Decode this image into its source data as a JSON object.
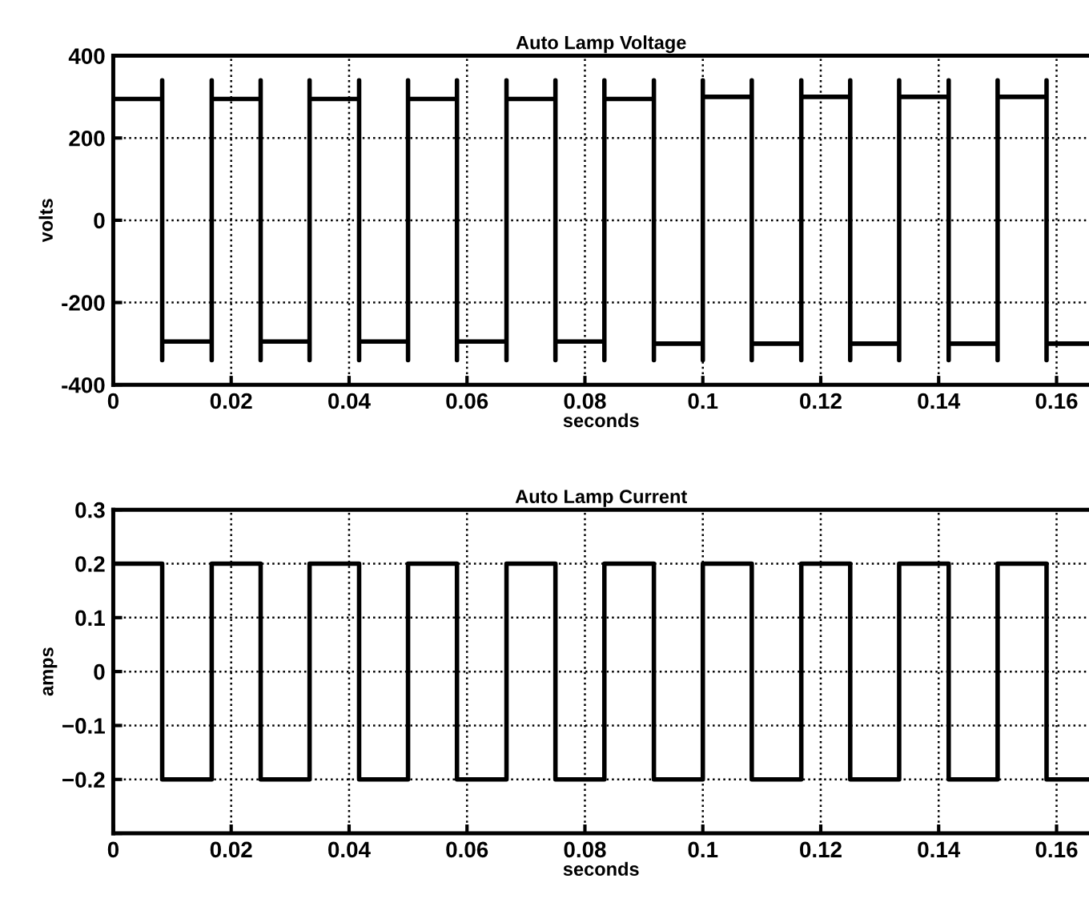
{
  "chart_data": [
    {
      "type": "line",
      "title": "Auto Lamp Voltage",
      "xlabel": "seconds",
      "ylabel": "volts",
      "xlim": [
        0,
        0.1655
      ],
      "xticks": [
        0,
        {
          "value": 0.02,
          "label": "0.02"
        },
        {
          "value": 0.04,
          "label": "0.04"
        },
        {
          "value": 0.06,
          "label": "0.06"
        },
        {
          "value": 0.08,
          "label": "0.08"
        },
        {
          "value": 0.1,
          "label": "0.1"
        },
        {
          "value": 0.12,
          "label": "0.12"
        },
        {
          "value": 0.14,
          "label": "0.14"
        },
        {
          "value": 0.16,
          "label": "0.16"
        }
      ],
      "ylim": [
        -400,
        400
      ],
      "yticks": [
        -400,
        -200,
        0,
        200,
        400
      ],
      "grid": true,
      "marker": "none",
      "line_style": "solid",
      "series": [
        {
          "color": "#000000",
          "x": [
            0,
            0.0083,
            0.0083,
            0.0083,
            0.0083,
            0.0167,
            0.0167,
            0.0167,
            0.0167,
            0.025,
            0.025,
            0.025,
            0.025,
            0.0333,
            0.0333,
            0.0333,
            0.0333,
            0.0417,
            0.0417,
            0.0417,
            0.0417,
            0.05,
            0.05,
            0.05,
            0.05,
            0.0583,
            0.0583,
            0.0583,
            0.0583,
            0.0667,
            0.0667,
            0.0667,
            0.0667,
            0.075,
            0.075,
            0.075,
            0.075,
            0.0833,
            0.0833,
            0.0833,
            0.0833,
            0.0917,
            0.0917,
            0.0917,
            0.0917,
            0.1,
            0.1,
            0.1,
            0.1,
            0.1083,
            0.1083,
            0.1083,
            0.1083,
            0.1167,
            0.1167,
            0.1167,
            0.1167,
            0.125,
            0.125,
            0.125,
            0.125,
            0.1333,
            0.1333,
            0.1333,
            0.1333,
            0.1417,
            0.1417,
            0.1417,
            0.1417,
            0.15,
            0.15,
            0.15,
            0.15,
            0.1583,
            0.1583,
            0.1583,
            0.1583,
            0.1655
          ],
          "values": [
            295,
            295,
            340,
            -340,
            -295,
            -295,
            -340,
            340,
            295,
            295,
            340,
            -340,
            -295,
            -295,
            -340,
            340,
            295,
            295,
            340,
            -340,
            -295,
            -295,
            -340,
            340,
            295,
            295,
            340,
            -340,
            -295,
            -295,
            -340,
            340,
            295,
            295,
            340,
            -340,
            -295,
            -295,
            -340,
            340,
            295,
            295,
            340,
            -340,
            -300,
            -300,
            -340,
            340,
            300,
            300,
            340,
            -340,
            -300,
            -300,
            -340,
            340,
            300,
            300,
            340,
            -340,
            -300,
            -300,
            -340,
            340,
            300,
            300,
            340,
            -340,
            -300,
            -300,
            -340,
            340,
            300,
            300,
            340,
            -340,
            -300,
            -300
          ]
        }
      ]
    },
    {
      "type": "line",
      "title": "Auto Lamp Current",
      "xlabel": "seconds",
      "ylabel": "amps",
      "xlim": [
        0,
        0.1655
      ],
      "xticks": [
        0,
        {
          "value": 0.02,
          "label": "0.02"
        },
        {
          "value": 0.04,
          "label": "0.04"
        },
        {
          "value": 0.06,
          "label": "0.06"
        },
        {
          "value": 0.08,
          "label": "0.08"
        },
        {
          "value": 0.1,
          "label": "0.1"
        },
        {
          "value": 0.12,
          "label": "0.12"
        },
        {
          "value": 0.14,
          "label": "0.14"
        },
        {
          "value": 0.16,
          "label": "0.16"
        }
      ],
      "ylim": [
        -0.3,
        0.3
      ],
      "yticks": [
        {
          "value": -0.3,
          "label": null
        },
        {
          "value": -0.2,
          "label": "−0.2"
        },
        {
          "value": -0.1,
          "label": "−0.1"
        },
        0,
        0.1,
        0.2,
        0.3
      ],
      "grid": true,
      "marker": "none",
      "line_style": "solid",
      "series": [
        {
          "color": "#000000",
          "x": [
            0,
            0.0083,
            0.0083,
            0.0167,
            0.0167,
            0.025,
            0.025,
            0.0333,
            0.0333,
            0.0417,
            0.0417,
            0.05,
            0.05,
            0.0583,
            0.0583,
            0.0667,
            0.0667,
            0.075,
            0.075,
            0.0833,
            0.0833,
            0.0917,
            0.0917,
            0.1,
            0.1,
            0.1083,
            0.1083,
            0.1167,
            0.1167,
            0.125,
            0.125,
            0.1333,
            0.1333,
            0.1417,
            0.1417,
            0.15,
            0.15,
            0.1583,
            0.1583,
            0.1655
          ],
          "values": [
            0.2,
            0.2,
            -0.2,
            -0.2,
            0.2,
            0.2,
            -0.2,
            -0.2,
            0.2,
            0.2,
            -0.2,
            -0.2,
            0.2,
            0.2,
            -0.2,
            -0.2,
            0.2,
            0.2,
            -0.2,
            -0.2,
            0.2,
            0.2,
            -0.2,
            -0.2,
            0.2,
            0.2,
            -0.2,
            -0.2,
            0.2,
            0.2,
            -0.2,
            -0.2,
            0.2,
            0.2,
            -0.2,
            -0.2,
            0.2,
            0.2,
            -0.2,
            -0.2
          ]
        }
      ]
    }
  ]
}
